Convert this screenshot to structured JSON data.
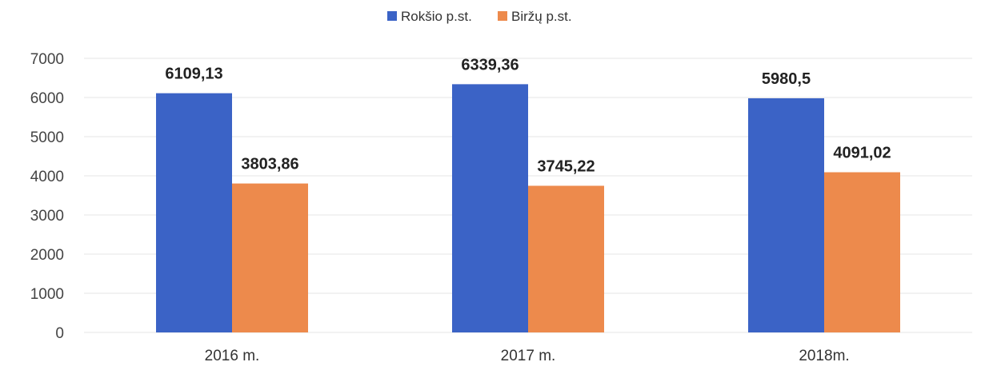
{
  "chart_data": {
    "type": "bar",
    "categories": [
      "2016 m.",
      "2017 m.",
      "2018m."
    ],
    "series": [
      {
        "name": "Rokšio p.st.",
        "color": "#3b63c6",
        "values": [
          6109.13,
          6339.36,
          5980.5
        ],
        "labels": [
          "6109,13",
          "6339,36",
          "5980,5"
        ]
      },
      {
        "name": "Biržų p.st.",
        "color": "#ed8a4c",
        "values": [
          3803.86,
          3745.22,
          4091.02
        ],
        "labels": [
          "3803,86",
          "3745,22",
          "4091,02"
        ]
      }
    ],
    "yticks": [
      0,
      1000,
      2000,
      3000,
      4000,
      5000,
      6000,
      7000
    ],
    "ylim": [
      0,
      7000
    ],
    "title": "",
    "xlabel": "",
    "ylabel": "",
    "legend_position": "top-center",
    "grid": true
  }
}
